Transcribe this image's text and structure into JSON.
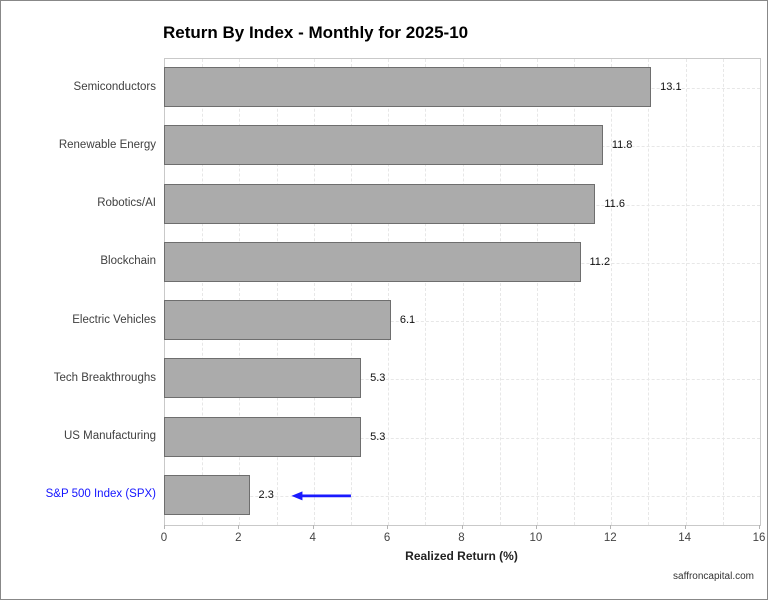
{
  "watermark": "saffroncapital.com",
  "chart_data": {
    "type": "bar",
    "orientation": "horizontal",
    "title": "Return By Index - Monthly for 2025-10",
    "xlabel": "Realized Return (%)",
    "ylabel": "",
    "categories": [
      "Semiconductors",
      "Renewable Energy",
      "Robotics/AI",
      "Blockchain",
      "Electric Vehicles",
      "Tech Breakthroughs",
      "US Manufacturing",
      "S&P 500 Index (SPX)"
    ],
    "values": [
      13.1,
      11.8,
      11.6,
      11.2,
      6.1,
      5.3,
      5.3,
      2.3
    ],
    "value_labels": [
      "13.1",
      "11.8",
      "11.6",
      "11.2",
      "6.1",
      "5.3",
      "5.3",
      "2.3"
    ],
    "xlim": [
      0,
      16
    ],
    "xticks": [
      0,
      2,
      4,
      6,
      8,
      10,
      12,
      14,
      16
    ],
    "grid": "dashed, vertical every 1 unit, horizontal at category centers",
    "legend": "none",
    "highlight_category": "S&P 500 Index (SPX)",
    "annotation": {
      "type": "arrow",
      "target_category": "S&P 500 Index (SPX)",
      "x_from": 5.0,
      "x_to": 3.4
    },
    "colors": {
      "bar_fill": "#ababab",
      "bar_border": "#6e6e6e",
      "grid": "#e7e7e7",
      "panel_border": "#c9c9c9",
      "axis_text": "#444444",
      "category_text": "#404040",
      "value_text": "#111111",
      "highlight_text": "#1414ff",
      "arrow": "#1a1aff",
      "figure_border": "#888888"
    }
  }
}
